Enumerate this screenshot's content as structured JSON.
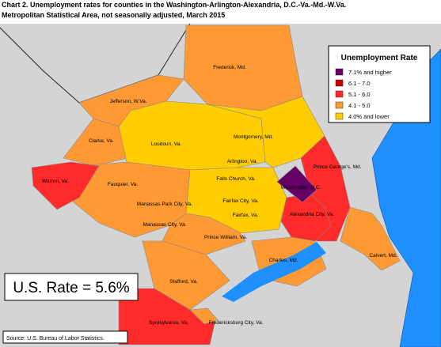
{
  "title": {
    "line1": "Chart 2. Unemployment rates for counties in the Washington-Arlington-Alexandria, D.C.-Va.-Md.-W.Va.",
    "line2": "Metropolitan Statistical Area, not seasonally adjusted, March 2015"
  },
  "legend": {
    "title": "Unemployment Rate",
    "items": [
      {
        "label": "7.1% and higher",
        "color": "#660066"
      },
      {
        "label": "6.1 - 7.0",
        "color": "#cc0000"
      },
      {
        "label": "5.1 - 6.0",
        "color": "#ff2a2a"
      },
      {
        "label": "4.1 - 5.0",
        "color": "#ff9933"
      },
      {
        "label": "4.0% and lower",
        "color": "#ffcc00"
      }
    ]
  },
  "regions": [
    {
      "label": "Frederick, Md.",
      "color": "#ff9933"
    },
    {
      "label": "Jefferson, W.Va.",
      "color": "#ff9933"
    },
    {
      "label": "Clarke, Va.",
      "color": "#ff9933"
    },
    {
      "label": "Loudoun, Va.",
      "color": "#ffcc00"
    },
    {
      "label": "Montgomery, Md.",
      "color": "#ffcc00"
    },
    {
      "label": "Prince George's, Md.",
      "color": "#ff2a2a"
    },
    {
      "label": "Washington, D.C.",
      "color": "#660066"
    },
    {
      "label": "Arlington, Va.",
      "color": "#ffcc00"
    },
    {
      "label": "Falls Church, Va.",
      "color": "#ffcc00"
    },
    {
      "label": "Fairfax City, Va.",
      "color": "#ffcc00"
    },
    {
      "label": "Fairfax, Va.",
      "color": "#ffcc00"
    },
    {
      "label": "Alexandria City, Va.",
      "color": "#ff2a2a"
    },
    {
      "label": "Warren, Va.",
      "color": "#ff2a2a"
    },
    {
      "label": "Fauquier, Va.",
      "color": "#ff9933"
    },
    {
      "label": "Manassas Park City, Va.",
      "color": "#ff9933"
    },
    {
      "label": "Manassas City, Va.",
      "color": "#ff9933"
    },
    {
      "label": "Prince William, Va.",
      "color": "#ff9933"
    },
    {
      "label": "Charles, Md.",
      "color": "#ff9933"
    },
    {
      "label": "Calvert, Md.",
      "color": "#ff9933"
    },
    {
      "label": "Stafford, Va.",
      "color": "#ff9933"
    },
    {
      "label": "Spotsylvania, Va.",
      "color": "#ff2a2a"
    },
    {
      "label": "Fredericksburg City, Va.",
      "color": "#ff9933"
    }
  ],
  "us_rate": "U.S. Rate = 5.6%",
  "source": "Source: U.S. Bureau of Labor Statistics."
}
